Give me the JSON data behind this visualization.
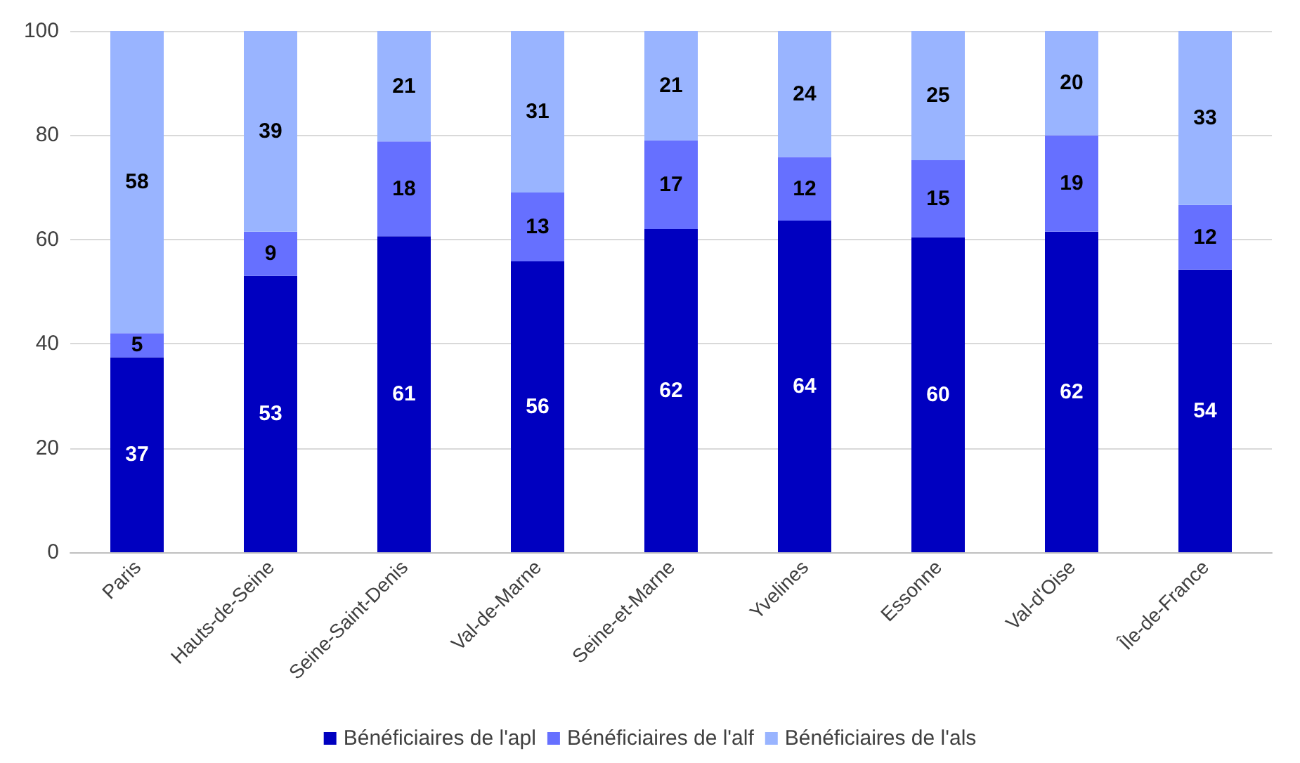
{
  "chart_data": {
    "type": "bar",
    "stacked": true,
    "categories": [
      "Paris",
      "Hauts-de-Seine",
      "Seine-Saint-Denis",
      "Val-de-Marne",
      "Seine-et-Marne",
      "Yvelines",
      "Essonne",
      "Val-d'Oise",
      "Île-de-France"
    ],
    "series": [
      {
        "name": "Bénéficiaires de l'apl",
        "color": "#0000c0",
        "values": [
          37.4,
          53,
          60.6,
          55.8,
          62,
          63.6,
          60.4,
          61.5,
          54.2
        ],
        "value_labels": [
          "37",
          "53",
          "61",
          "56",
          "62",
          "64",
          "60",
          "62",
          "54"
        ]
      },
      {
        "name": "Bénéficiaires de l'alf",
        "color": "#6670ff",
        "values": [
          4.6,
          8.5,
          18.2,
          13.2,
          17,
          12.2,
          14.8,
          18.5,
          12.4
        ],
        "value_labels": [
          "5",
          "9",
          "18",
          "13",
          "17",
          "12",
          "15",
          "19",
          "12"
        ]
      },
      {
        "name": "Bénéficiaires de l'als",
        "color": "#99b4ff",
        "values": [
          58,
          38.5,
          21.2,
          31,
          21,
          24.2,
          24.8,
          20,
          33.4
        ],
        "value_labels": [
          "58",
          "39",
          "21",
          "31",
          "21",
          "24",
          "25",
          "20",
          "33"
        ]
      }
    ],
    "ylim": [
      0,
      100
    ],
    "yticks": [
      0,
      20,
      40,
      60,
      80,
      100
    ],
    "grid": "y",
    "legend": "bottom"
  }
}
